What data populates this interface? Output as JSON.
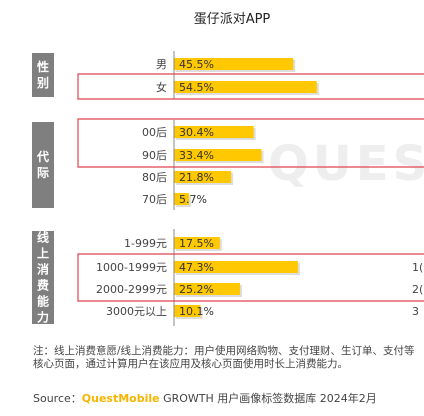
{
  "chart_data": {
    "type": "bar",
    "orientation": "horizontal",
    "title": "蛋仔派对APP",
    "xlim": [
      0,
      100
    ],
    "groups": [
      {
        "label": "性别",
        "categories": [
          "男",
          "女"
        ],
        "values": [
          45.5,
          54.5
        ],
        "value_labels": [
          "45.5%",
          "54.5%"
        ]
      },
      {
        "label": "代际",
        "categories": [
          "00后",
          "90后",
          "80后",
          "70后"
        ],
        "values": [
          30.4,
          33.4,
          21.8,
          5.7
        ],
        "value_labels": [
          "30.4%",
          "33.4%",
          "21.8%",
          "5.7%"
        ]
      },
      {
        "label": "线上消费能力",
        "categories": [
          "1-999元",
          "1000-1999元",
          "2000-2999元",
          "3000元以上"
        ],
        "values": [
          17.5,
          47.3,
          25.2,
          10.1
        ],
        "value_labels": [
          "17.5%",
          "47.3%",
          "25.2%",
          "10.1%"
        ]
      }
    ],
    "highlight_boxes": [
      {
        "group": 0,
        "from": 1,
        "to": 1
      },
      {
        "group": 1,
        "from": 0,
        "to": 1
      },
      {
        "group": 2,
        "from": 1,
        "to": 2
      }
    ],
    "bar_color": "#ffc800",
    "bar_shadow_color": "#dddddd",
    "highlight_color": "#e0454f",
    "group_label_color": "#7f7f7f",
    "watermark": "QUES",
    "edge_labels": [
      "1(",
      "2(",
      "3"
    ]
  },
  "footnote": "注：线上消费意愿/线上消费能力：用户使用网络购物、支付理财、生订单、支付等核心页面，通过计算用户在该应用及核心页面使用时长上消费能力。",
  "source": {
    "prefix": "Source：",
    "brand": "QuestMobile",
    "rest": "GROWTH 用户画像标签数据库 2024年2月"
  }
}
